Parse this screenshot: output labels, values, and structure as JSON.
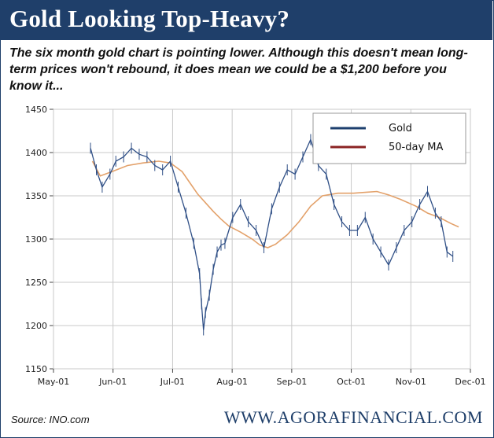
{
  "header": {
    "title": "Gold Looking Top-Heavy?",
    "subtitle": "The six month gold chart is pointing lower. Although this doesn't mean long-term prices won't rebound, it does mean we could be a $1,200 before you know it..."
  },
  "footer": {
    "source": "Source: INO.com",
    "brand": "WWW.AGORAFINANCIAL.COM"
  },
  "colors": {
    "header_bg": "#1f3f6a",
    "gold": "#2f4f86",
    "ma": "#e3a16a",
    "legend_gold": "#1d3f6e",
    "legend_ma": "#8b2323",
    "grid": "#c9c9c9"
  },
  "chart_data": {
    "type": "line",
    "title": "Gold Looking Top-Heavy?",
    "xlabel": "",
    "ylabel": "",
    "x_ticks": [
      "May-01",
      "Jun-01",
      "Jul-01",
      "Aug-01",
      "Sep-01",
      "Oct-01",
      "Nov-01",
      "Dec-01"
    ],
    "y_ticks": [
      1150,
      1200,
      1250,
      1300,
      1350,
      1400,
      1450
    ],
    "ylim": [
      1150,
      1450
    ],
    "xlim": [
      0,
      214
    ],
    "grid": true,
    "legend": {
      "position": "top-right",
      "entries": [
        "Gold",
        "50-day MA"
      ]
    },
    "series": [
      {
        "name": "Gold",
        "x": [
          19,
          22,
          25,
          29,
          32,
          36,
          40,
          44,
          48,
          52,
          56,
          60,
          64,
          68,
          72,
          75,
          76,
          77,
          78,
          80,
          82,
          84,
          86,
          88,
          92,
          96,
          100,
          104,
          108,
          112,
          116,
          120,
          124,
          128,
          132,
          136,
          140,
          144,
          148,
          152,
          156,
          160,
          164,
          168,
          172,
          176,
          180,
          184,
          188,
          192,
          196,
          199,
          202,
          205
        ],
        "y": [
          1405,
          1380,
          1360,
          1375,
          1390,
          1395,
          1405,
          1398,
          1395,
          1385,
          1380,
          1390,
          1360,
          1330,
          1295,
          1260,
          1225,
          1195,
          1215,
          1235,
          1265,
          1285,
          1293,
          1295,
          1325,
          1340,
          1320,
          1310,
          1290,
          1335,
          1360,
          1380,
          1375,
          1395,
          1415,
          1385,
          1375,
          1340,
          1320,
          1310,
          1310,
          1325,
          1300,
          1285,
          1270,
          1290,
          1310,
          1320,
          1340,
          1355,
          1330,
          1320,
          1285,
          1280
        ]
      },
      {
        "name": "50-day MA",
        "x": [
          20,
          24,
          30,
          38,
          46,
          54,
          60,
          66,
          70,
          74,
          78,
          82,
          86,
          90,
          96,
          102,
          106,
          110,
          114,
          120,
          126,
          132,
          138,
          146,
          154,
          160,
          166,
          172,
          178,
          186,
          192,
          198,
          204,
          208
        ],
        "y": [
          1390,
          1373,
          1378,
          1385,
          1388,
          1390,
          1388,
          1378,
          1365,
          1352,
          1342,
          1332,
          1323,
          1315,
          1308,
          1300,
          1293,
          1290,
          1294,
          1305,
          1320,
          1338,
          1350,
          1353,
          1353,
          1354,
          1355,
          1351,
          1346,
          1338,
          1330,
          1325,
          1318,
          1314
        ]
      }
    ]
  }
}
